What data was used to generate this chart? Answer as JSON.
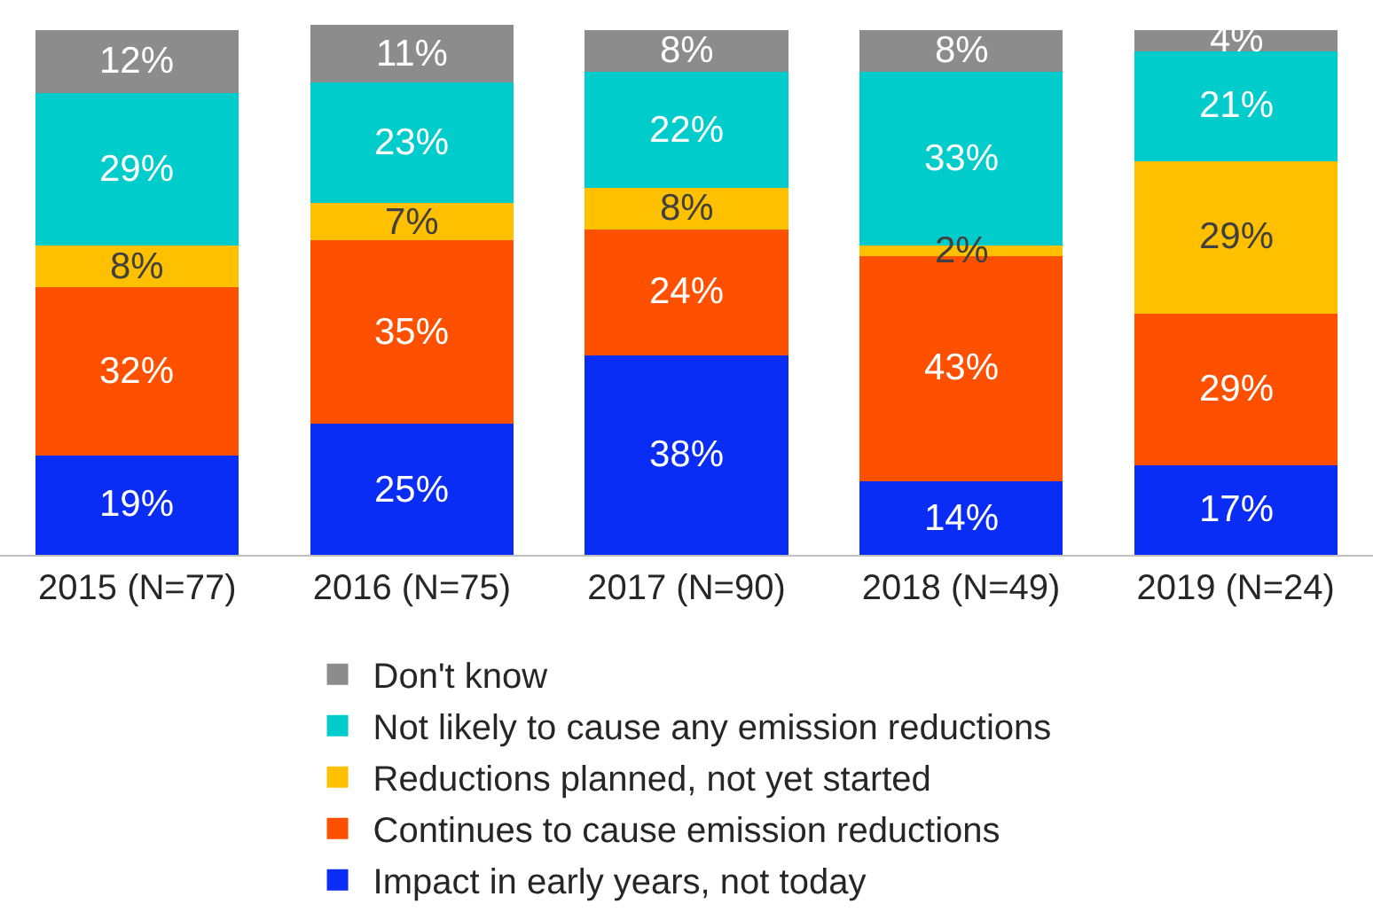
{
  "chart_data": {
    "type": "bar",
    "stacked": true,
    "legend": "bottom",
    "categories": [
      "2015 (N=77)",
      "2016 (N=75)",
      "2017 (N=90)",
      "2018 (N=49)",
      "2019 (N=24)"
    ],
    "series": [
      {
        "name": "Impact in early years, not today",
        "color": "#0a2df5",
        "values": [
          19,
          25,
          38,
          14,
          17
        ],
        "value_labels": [
          "19%",
          "25%",
          "38%",
          "14%",
          "17%"
        ]
      },
      {
        "name": "Continues to cause emission reductions",
        "color": "#ff5000",
        "values": [
          32,
          35,
          24,
          43,
          29
        ],
        "value_labels": [
          "32%",
          "35%",
          "24%",
          "43%",
          "29%"
        ]
      },
      {
        "name": "Reductions planned, not yet started",
        "color": "#ffc000",
        "values": [
          8,
          7,
          8,
          2,
          29
        ],
        "value_labels": [
          "8%",
          "7%",
          "8%",
          "2%",
          "29%"
        ]
      },
      {
        "name": "Not likely to cause any emission reductions",
        "color": "#00cccc",
        "values": [
          29,
          23,
          22,
          33,
          21
        ],
        "value_labels": [
          "29%",
          "23%",
          "22%",
          "33%",
          "21%"
        ]
      },
      {
        "name": "Don't know",
        "color": "#8c8c8c",
        "values": [
          12,
          11,
          8,
          8,
          4
        ],
        "value_labels": [
          "12%",
          "11%",
          "8%",
          "8%",
          "4%"
        ]
      }
    ]
  }
}
